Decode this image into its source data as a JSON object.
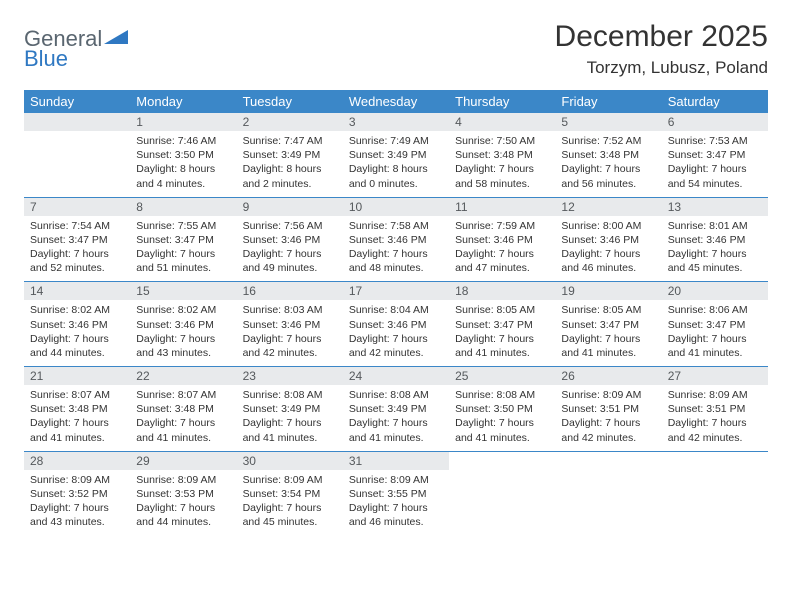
{
  "logo": {
    "general": "General",
    "blue": "Blue"
  },
  "title": "December 2025",
  "location": "Torzym, Lubusz, Poland",
  "colors": {
    "header_bg": "#3b87c8",
    "header_text": "#ffffff",
    "daynum_bg": "#e8eaec",
    "daynum_text": "#55595c",
    "body_text": "#333333",
    "rule": "#3b87c8",
    "logo_gray": "#5a6670",
    "logo_blue": "#2f78c2"
  },
  "weekdays": [
    "Sunday",
    "Monday",
    "Tuesday",
    "Wednesday",
    "Thursday",
    "Friday",
    "Saturday"
  ],
  "weeks": [
    [
      null,
      {
        "n": "1",
        "sunrise": "7:46 AM",
        "sunset": "3:50 PM",
        "day": "8 hours and 4 minutes."
      },
      {
        "n": "2",
        "sunrise": "7:47 AM",
        "sunset": "3:49 PM",
        "day": "8 hours and 2 minutes."
      },
      {
        "n": "3",
        "sunrise": "7:49 AM",
        "sunset": "3:49 PM",
        "day": "8 hours and 0 minutes."
      },
      {
        "n": "4",
        "sunrise": "7:50 AM",
        "sunset": "3:48 PM",
        "day": "7 hours and 58 minutes."
      },
      {
        "n": "5",
        "sunrise": "7:52 AM",
        "sunset": "3:48 PM",
        "day": "7 hours and 56 minutes."
      },
      {
        "n": "6",
        "sunrise": "7:53 AM",
        "sunset": "3:47 PM",
        "day": "7 hours and 54 minutes."
      }
    ],
    [
      {
        "n": "7",
        "sunrise": "7:54 AM",
        "sunset": "3:47 PM",
        "day": "7 hours and 52 minutes."
      },
      {
        "n": "8",
        "sunrise": "7:55 AM",
        "sunset": "3:47 PM",
        "day": "7 hours and 51 minutes."
      },
      {
        "n": "9",
        "sunrise": "7:56 AM",
        "sunset": "3:46 PM",
        "day": "7 hours and 49 minutes."
      },
      {
        "n": "10",
        "sunrise": "7:58 AM",
        "sunset": "3:46 PM",
        "day": "7 hours and 48 minutes."
      },
      {
        "n": "11",
        "sunrise": "7:59 AM",
        "sunset": "3:46 PM",
        "day": "7 hours and 47 minutes."
      },
      {
        "n": "12",
        "sunrise": "8:00 AM",
        "sunset": "3:46 PM",
        "day": "7 hours and 46 minutes."
      },
      {
        "n": "13",
        "sunrise": "8:01 AM",
        "sunset": "3:46 PM",
        "day": "7 hours and 45 minutes."
      }
    ],
    [
      {
        "n": "14",
        "sunrise": "8:02 AM",
        "sunset": "3:46 PM",
        "day": "7 hours and 44 minutes."
      },
      {
        "n": "15",
        "sunrise": "8:02 AM",
        "sunset": "3:46 PM",
        "day": "7 hours and 43 minutes."
      },
      {
        "n": "16",
        "sunrise": "8:03 AM",
        "sunset": "3:46 PM",
        "day": "7 hours and 42 minutes."
      },
      {
        "n": "17",
        "sunrise": "8:04 AM",
        "sunset": "3:46 PM",
        "day": "7 hours and 42 minutes."
      },
      {
        "n": "18",
        "sunrise": "8:05 AM",
        "sunset": "3:47 PM",
        "day": "7 hours and 41 minutes."
      },
      {
        "n": "19",
        "sunrise": "8:05 AM",
        "sunset": "3:47 PM",
        "day": "7 hours and 41 minutes."
      },
      {
        "n": "20",
        "sunrise": "8:06 AM",
        "sunset": "3:47 PM",
        "day": "7 hours and 41 minutes."
      }
    ],
    [
      {
        "n": "21",
        "sunrise": "8:07 AM",
        "sunset": "3:48 PM",
        "day": "7 hours and 41 minutes."
      },
      {
        "n": "22",
        "sunrise": "8:07 AM",
        "sunset": "3:48 PM",
        "day": "7 hours and 41 minutes."
      },
      {
        "n": "23",
        "sunrise": "8:08 AM",
        "sunset": "3:49 PM",
        "day": "7 hours and 41 minutes."
      },
      {
        "n": "24",
        "sunrise": "8:08 AM",
        "sunset": "3:49 PM",
        "day": "7 hours and 41 minutes."
      },
      {
        "n": "25",
        "sunrise": "8:08 AM",
        "sunset": "3:50 PM",
        "day": "7 hours and 41 minutes."
      },
      {
        "n": "26",
        "sunrise": "8:09 AM",
        "sunset": "3:51 PM",
        "day": "7 hours and 42 minutes."
      },
      {
        "n": "27",
        "sunrise": "8:09 AM",
        "sunset": "3:51 PM",
        "day": "7 hours and 42 minutes."
      }
    ],
    [
      {
        "n": "28",
        "sunrise": "8:09 AM",
        "sunset": "3:52 PM",
        "day": "7 hours and 43 minutes."
      },
      {
        "n": "29",
        "sunrise": "8:09 AM",
        "sunset": "3:53 PM",
        "day": "7 hours and 44 minutes."
      },
      {
        "n": "30",
        "sunrise": "8:09 AM",
        "sunset": "3:54 PM",
        "day": "7 hours and 45 minutes."
      },
      {
        "n": "31",
        "sunrise": "8:09 AM",
        "sunset": "3:55 PM",
        "day": "7 hours and 46 minutes."
      },
      null,
      null,
      null
    ]
  ],
  "labels": {
    "sunrise": "Sunrise:",
    "sunset": "Sunset:",
    "daylight": "Daylight:"
  }
}
